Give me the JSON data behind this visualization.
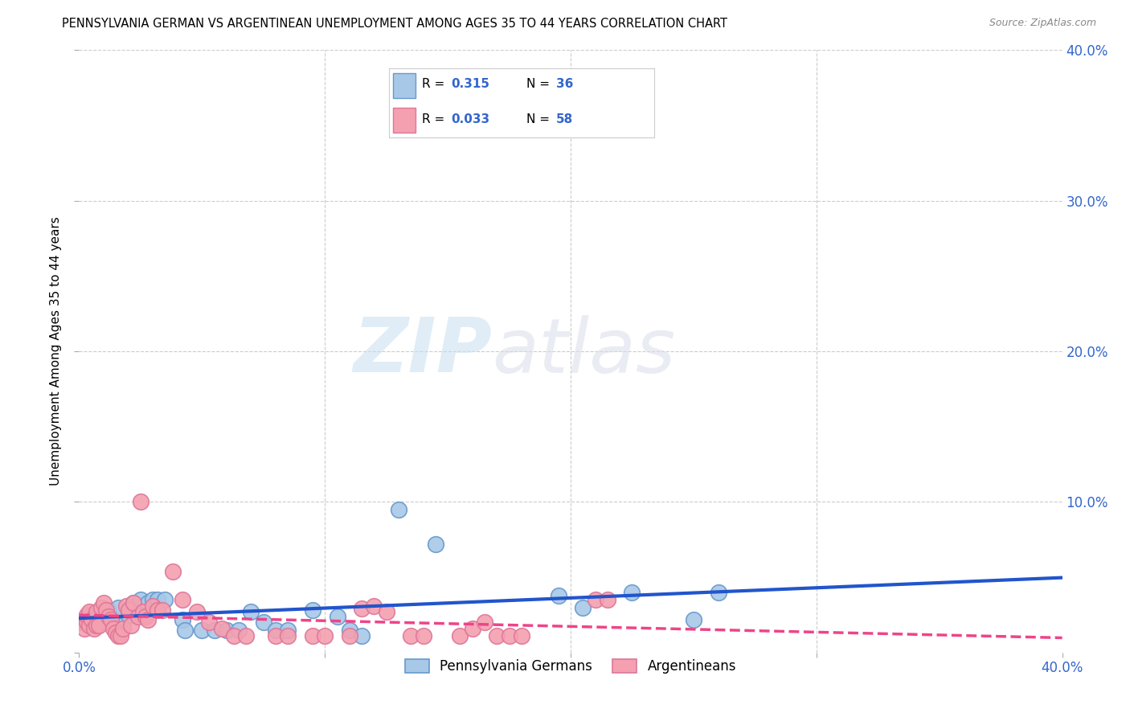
{
  "title": "PENNSYLVANIA GERMAN VS ARGENTINEAN UNEMPLOYMENT AMONG AGES 35 TO 44 YEARS CORRELATION CHART",
  "source": "Source: ZipAtlas.com",
  "ylabel": "Unemployment Among Ages 35 to 44 years",
  "xlim": [
    0.0,
    0.4
  ],
  "ylim": [
    0.0,
    0.4
  ],
  "xticks": [
    0.0,
    0.1,
    0.2,
    0.3,
    0.4
  ],
  "yticks": [
    0.0,
    0.1,
    0.2,
    0.3,
    0.4
  ],
  "xticklabels": [
    "0.0%",
    "",
    "",
    "",
    "40.0%"
  ],
  "yticklabels": [
    "",
    "10.0%",
    "20.0%",
    "30.0%",
    "40.0%"
  ],
  "blue_color": "#A8C8E8",
  "pink_color": "#F4A0B0",
  "blue_edge_color": "#6699CC",
  "pink_edge_color": "#DD7799",
  "blue_line_color": "#2255CC",
  "pink_line_color": "#EE4488",
  "grid_color": "#CCCCCC",
  "R_blue": 0.315,
  "N_blue": 36,
  "R_pink": 0.033,
  "N_pink": 58,
  "legend_labels": [
    "Pennsylvania Germans",
    "Argentineans"
  ],
  "watermark": "ZIPatlas",
  "blue_points": [
    [
      0.003,
      0.022
    ],
    [
      0.006,
      0.018
    ],
    [
      0.008,
      0.025
    ],
    [
      0.01,
      0.02
    ],
    [
      0.012,
      0.028
    ],
    [
      0.015,
      0.022
    ],
    [
      0.016,
      0.03
    ],
    [
      0.018,
      0.018
    ],
    [
      0.02,
      0.025
    ],
    [
      0.022,
      0.033
    ],
    [
      0.025,
      0.035
    ],
    [
      0.028,
      0.033
    ],
    [
      0.03,
      0.035
    ],
    [
      0.032,
      0.035
    ],
    [
      0.035,
      0.035
    ],
    [
      0.042,
      0.022
    ],
    [
      0.043,
      0.015
    ],
    [
      0.05,
      0.015
    ],
    [
      0.055,
      0.015
    ],
    [
      0.06,
      0.015
    ],
    [
      0.065,
      0.015
    ],
    [
      0.07,
      0.027
    ],
    [
      0.075,
      0.02
    ],
    [
      0.08,
      0.015
    ],
    [
      0.085,
      0.015
    ],
    [
      0.095,
      0.028
    ],
    [
      0.105,
      0.024
    ],
    [
      0.11,
      0.015
    ],
    [
      0.115,
      0.011
    ],
    [
      0.13,
      0.095
    ],
    [
      0.145,
      0.072
    ],
    [
      0.195,
      0.038
    ],
    [
      0.205,
      0.03
    ],
    [
      0.225,
      0.04
    ],
    [
      0.25,
      0.022
    ],
    [
      0.26,
      0.04
    ]
  ],
  "pink_points": [
    [
      0.001,
      0.02
    ],
    [
      0.002,
      0.016
    ],
    [
      0.003,
      0.02
    ],
    [
      0.003,
      0.025
    ],
    [
      0.004,
      0.018
    ],
    [
      0.004,
      0.027
    ],
    [
      0.005,
      0.022
    ],
    [
      0.006,
      0.016
    ],
    [
      0.007,
      0.027
    ],
    [
      0.007,
      0.018
    ],
    [
      0.008,
      0.018
    ],
    [
      0.009,
      0.03
    ],
    [
      0.01,
      0.033
    ],
    [
      0.011,
      0.028
    ],
    [
      0.012,
      0.024
    ],
    [
      0.013,
      0.022
    ],
    [
      0.014,
      0.016
    ],
    [
      0.015,
      0.013
    ],
    [
      0.016,
      0.011
    ],
    [
      0.017,
      0.011
    ],
    [
      0.018,
      0.016
    ],
    [
      0.019,
      0.031
    ],
    [
      0.02,
      0.028
    ],
    [
      0.021,
      0.018
    ],
    [
      0.022,
      0.033
    ],
    [
      0.024,
      0.024
    ],
    [
      0.025,
      0.1
    ],
    [
      0.026,
      0.027
    ],
    [
      0.027,
      0.024
    ],
    [
      0.028,
      0.022
    ],
    [
      0.03,
      0.031
    ],
    [
      0.032,
      0.028
    ],
    [
      0.034,
      0.028
    ],
    [
      0.038,
      0.054
    ],
    [
      0.042,
      0.035
    ],
    [
      0.048,
      0.027
    ],
    [
      0.053,
      0.02
    ],
    [
      0.058,
      0.016
    ],
    [
      0.063,
      0.011
    ],
    [
      0.068,
      0.011
    ],
    [
      0.08,
      0.011
    ],
    [
      0.085,
      0.011
    ],
    [
      0.095,
      0.011
    ],
    [
      0.1,
      0.011
    ],
    [
      0.11,
      0.011
    ],
    [
      0.115,
      0.029
    ],
    [
      0.12,
      0.031
    ],
    [
      0.125,
      0.027
    ],
    [
      0.135,
      0.011
    ],
    [
      0.14,
      0.011
    ],
    [
      0.155,
      0.011
    ],
    [
      0.16,
      0.016
    ],
    [
      0.165,
      0.02
    ],
    [
      0.17,
      0.011
    ],
    [
      0.175,
      0.011
    ],
    [
      0.18,
      0.011
    ],
    [
      0.21,
      0.035
    ],
    [
      0.215,
      0.035
    ]
  ]
}
